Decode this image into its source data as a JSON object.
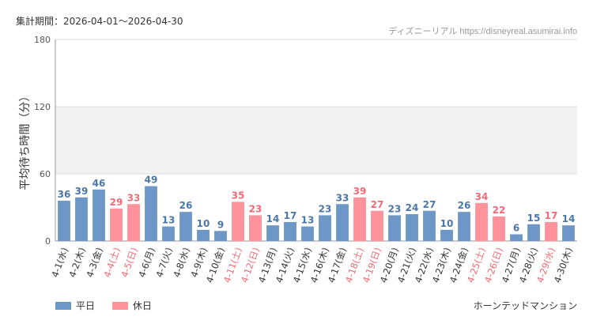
{
  "header": {
    "period": "集計期間：2026-04-01〜2026-04-30",
    "source": "ディズニーリアル https://disneyreal.asumirai.info"
  },
  "footer": {
    "attraction": "ホーンテッドマンション"
  },
  "legend": [
    {
      "name": "平日",
      "color": "#6c97c7"
    },
    {
      "name": "休日",
      "color": "#ff929a"
    }
  ],
  "colors": {
    "weekday_bar": "#6c97c7",
    "holiday_bar": "#ff929a",
    "weekday_label": "#4a76a8",
    "holiday_label": "#ef6b76",
    "weekday_tick": "#333333",
    "holiday_tick": "#ef6b76",
    "band": "#f2f2f2",
    "grid": "#dddddd"
  },
  "chart_data": {
    "type": "bar",
    "ylabel": "平均待ち時間（分）",
    "ylim": [
      0,
      180
    ],
    "yticks": [
      0,
      60,
      120,
      180
    ],
    "shaded_band": [
      60,
      120
    ],
    "legend_position": "bottom-left",
    "categories": [
      "4-1(水)",
      "4-2(木)",
      "4-3(金)",
      "4-4(土)",
      "4-5(日)",
      "4-6(月)",
      "4-7(火)",
      "4-8(水)",
      "4-9(木)",
      "4-10(金)",
      "4-11(土)",
      "4-12(日)",
      "4-13(月)",
      "4-14(火)",
      "4-15(水)",
      "4-16(木)",
      "4-17(金)",
      "4-18(土)",
      "4-19(日)",
      "4-20(月)",
      "4-21(火)",
      "4-22(水)",
      "4-23(木)",
      "4-24(金)",
      "4-25(土)",
      "4-26(日)",
      "4-27(月)",
      "4-28(火)",
      "4-29(水)",
      "4-30(木)"
    ],
    "values": [
      36,
      39,
      46,
      29,
      33,
      49,
      13,
      26,
      10,
      9,
      35,
      23,
      14,
      17,
      13,
      23,
      33,
      39,
      27,
      23,
      24,
      27,
      10,
      26,
      34,
      22,
      6,
      15,
      17,
      14
    ],
    "holiday": [
      false,
      false,
      false,
      true,
      true,
      false,
      false,
      false,
      false,
      false,
      true,
      true,
      false,
      false,
      false,
      false,
      false,
      true,
      true,
      false,
      false,
      false,
      false,
      false,
      true,
      true,
      false,
      false,
      true,
      false
    ]
  }
}
